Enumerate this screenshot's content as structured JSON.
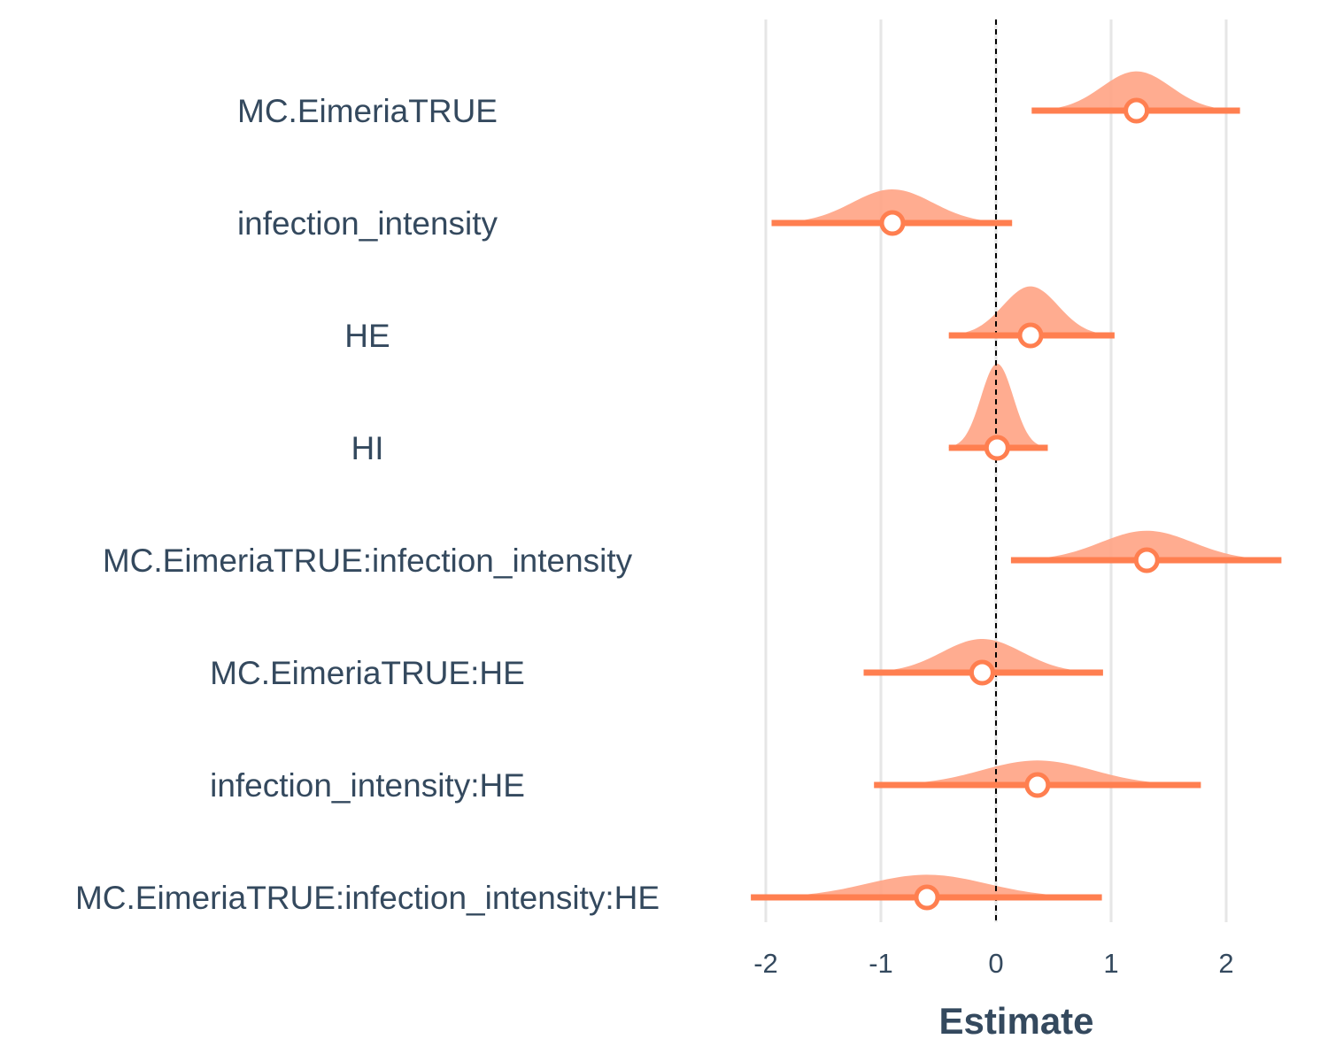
{
  "chart_data": {
    "type": "forest-density",
    "title": "",
    "xlabel": "Estimate",
    "ylabel": "",
    "xlim": [
      -2.1,
      2.5
    ],
    "xticks": [
      -2,
      -1,
      0,
      1,
      2
    ],
    "xtick_labels": [
      "-2",
      "-1",
      "0",
      "1",
      "2"
    ],
    "reference_line": 0,
    "grid": "vertical",
    "colors": {
      "density_fill": "#ffa384",
      "interval": "#ff7f50",
      "text": "#34495e",
      "grid": "#e6e6e6",
      "reference": "#000000"
    },
    "terms": [
      {
        "label": "MC.EimeriaTRUE",
        "estimate": 1.22,
        "lower": 0.31,
        "upper": 2.12,
        "sd": 0.3
      },
      {
        "label": "infection_intensity",
        "estimate": -0.9,
        "lower": -1.95,
        "upper": 0.14,
        "sd": 0.35
      },
      {
        "label": "HE",
        "estimate": 0.3,
        "lower": -0.41,
        "upper": 1.03,
        "sd": 0.24
      },
      {
        "label": "HI",
        "estimate": 0.01,
        "lower": -0.41,
        "upper": 0.45,
        "sd": 0.14
      },
      {
        "label": "MC.EimeriaTRUE:infection_intensity",
        "estimate": 1.31,
        "lower": 0.13,
        "upper": 2.48,
        "sd": 0.4
      },
      {
        "label": "MC.EimeriaTRUE:HE",
        "estimate": -0.12,
        "lower": -1.15,
        "upper": 0.93,
        "sd": 0.35
      },
      {
        "label": "infection_intensity:HE",
        "estimate": 0.36,
        "lower": -1.06,
        "upper": 1.78,
        "sd": 0.48
      },
      {
        "label": "MC.EimeriaTRUE:infection_intensity:HE",
        "estimate": -0.6,
        "lower": -2.13,
        "upper": 0.92,
        "sd": 0.52
      }
    ]
  }
}
